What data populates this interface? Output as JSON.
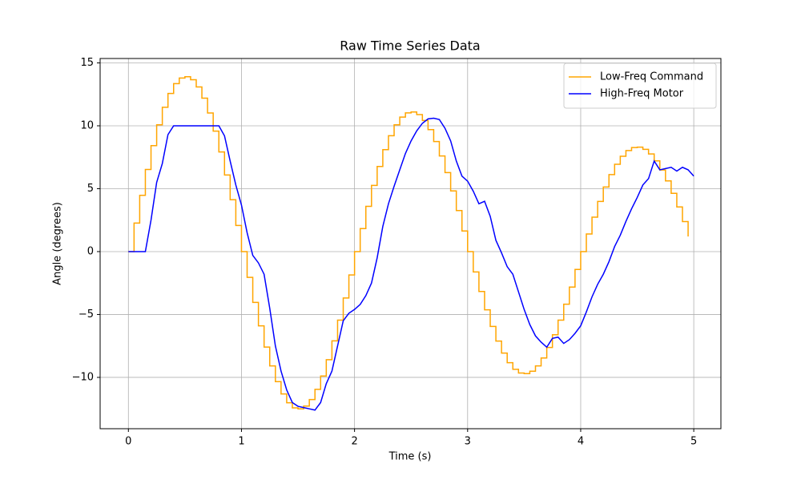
{
  "chart_data": {
    "type": "line",
    "title": "Raw Time Series Data",
    "x_label": "Time (s)",
    "y_label": "Angle (degrees)",
    "xlim": [
      -0.25,
      5.24
    ],
    "ylim": [
      -14.08,
      15.35
    ],
    "xticks": [
      0,
      1,
      2,
      3,
      4,
      5
    ],
    "yticks": [
      {
        "value": -10,
        "label": "−10"
      },
      {
        "value": -5,
        "label": "−5"
      },
      0,
      5,
      10,
      15
    ],
    "grid": true,
    "legend": "upper right",
    "series": [
      {
        "name": "Low-Freq Command",
        "color": "#ffa500",
        "drawstyle": "steps-post",
        "x": [
          0,
          0.05,
          0.1,
          0.15,
          0.2,
          0.25,
          0.3,
          0.35,
          0.4,
          0.45,
          0.5,
          0.55,
          0.6,
          0.65,
          0.7,
          0.75,
          0.8,
          0.85,
          0.9,
          0.95,
          1,
          1.05,
          1.1,
          1.15,
          1.2,
          1.25,
          1.3,
          1.35,
          1.4,
          1.45,
          1.5,
          1.55,
          1.6,
          1.65,
          1.7,
          1.75,
          1.8,
          1.85,
          1.9,
          1.95,
          2,
          2.05,
          2.1,
          2.15,
          2.2,
          2.25,
          2.3,
          2.35,
          2.4,
          2.45,
          2.5,
          2.55,
          2.6,
          2.65,
          2.7,
          2.75,
          2.8,
          2.85,
          2.9,
          2.95,
          3,
          3.05,
          3.1,
          3.15,
          3.2,
          3.25,
          3.3,
          3.35,
          3.4,
          3.45,
          3.5,
          3.55,
          3.6,
          3.65,
          3.7,
          3.75,
          3.8,
          3.85,
          3.9,
          3.95,
          4,
          4.05,
          4.1,
          4.15,
          4.2,
          4.25,
          4.3,
          4.35,
          4.4,
          4.45,
          4.5,
          4.55,
          4.6,
          4.65,
          4.7,
          4.75,
          4.8,
          4.85,
          4.9,
          4.95
        ],
        "values": [
          0,
          2.27,
          4.47,
          6.53,
          8.42,
          10.08,
          11.47,
          12.57,
          13.35,
          13.8,
          13.9,
          13.66,
          13.09,
          12.2,
          11.02,
          9.58,
          7.92,
          6.09,
          4.12,
          2.08,
          0,
          -2.05,
          -4.04,
          -5.9,
          -7.59,
          -9.09,
          -10.34,
          -11.32,
          -12.02,
          -12.42,
          -12.5,
          -12.28,
          -11.76,
          -10.95,
          -9.89,
          -8.59,
          -7.1,
          -5.45,
          -3.69,
          -1.86,
          0,
          1.83,
          3.6,
          5.26,
          6.77,
          8.1,
          9.21,
          10.08,
          10.69,
          11.03,
          11.1,
          10.89,
          10.42,
          9.7,
          8.75,
          7.6,
          6.28,
          4.82,
          3.26,
          1.64,
          0,
          -1.62,
          -3.17,
          -4.63,
          -5.95,
          -7.11,
          -8.07,
          -8.83,
          -9.36,
          -9.65,
          -9.7,
          -9.51,
          -9.09,
          -8.46,
          -7.62,
          -6.61,
          -5.45,
          -4.18,
          -2.82,
          -1.42,
          0,
          1.4,
          2.74,
          3.99,
          5.13,
          6.12,
          6.94,
          7.58,
          8.03,
          8.27,
          8.3,
          8.13,
          7.76,
          7.21,
          6.49,
          5.62,
          4.63,
          3.55,
          2.39,
          1.2
        ]
      },
      {
        "name": "High-Freq Motor",
        "color": "#0000ff",
        "drawstyle": "default",
        "x": [
          0,
          0.05,
          0.1,
          0.15,
          0.2,
          0.25,
          0.3,
          0.35,
          0.4,
          0.45,
          0.5,
          0.55,
          0.6,
          0.65,
          0.7,
          0.75,
          0.8,
          0.85,
          0.9,
          0.95,
          1,
          1.05,
          1.1,
          1.15,
          1.2,
          1.25,
          1.3,
          1.35,
          1.4,
          1.45,
          1.5,
          1.55,
          1.6,
          1.65,
          1.7,
          1.75,
          1.8,
          1.85,
          1.9,
          1.95,
          2,
          2.05,
          2.1,
          2.15,
          2.2,
          2.25,
          2.3,
          2.35,
          2.4,
          2.45,
          2.5,
          2.55,
          2.6,
          2.65,
          2.7,
          2.75,
          2.8,
          2.85,
          2.9,
          2.95,
          3,
          3.05,
          3.1,
          3.15,
          3.2,
          3.25,
          3.3,
          3.35,
          3.4,
          3.45,
          3.5,
          3.55,
          3.6,
          3.65,
          3.7,
          3.75,
          3.8,
          3.85,
          3.9,
          3.95,
          4,
          4.05,
          4.1,
          4.15,
          4.2,
          4.25,
          4.3,
          4.35,
          4.4,
          4.45,
          4.5,
          4.55,
          4.6,
          4.65,
          4.7,
          4.75,
          4.8,
          4.85,
          4.9,
          4.95,
          5
        ],
        "values": [
          0,
          0,
          0,
          0,
          2.5,
          5.5,
          7,
          9.3,
          10,
          10,
          10,
          10,
          10,
          10,
          10,
          10,
          10,
          9.2,
          7.2,
          5.3,
          3.7,
          1.5,
          -0.3,
          -0.9,
          -1.8,
          -4.5,
          -7.5,
          -9.5,
          -11,
          -12,
          -12.3,
          -12.4,
          -12.5,
          -12.6,
          -12,
          -10.5,
          -9.5,
          -7.5,
          -5.5,
          -4.9,
          -4.6,
          -4.2,
          -3.5,
          -2.5,
          -0.5,
          2,
          3.8,
          5.2,
          6.5,
          7.8,
          8.8,
          9.6,
          10.2,
          10.55,
          10.6,
          10.5,
          9.8,
          8.8,
          7.2,
          6,
          5.6,
          4.8,
          3.8,
          4,
          2.8,
          0.9,
          -0.1,
          -1.2,
          -1.8,
          -3.2,
          -4.6,
          -5.8,
          -6.7,
          -7.2,
          -7.6,
          -6.9,
          -6.8,
          -7.3,
          -7,
          -6.5,
          -5.9,
          -4.8,
          -3.6,
          -2.6,
          -1.8,
          -0.8,
          0.4,
          1.3,
          2.4,
          3.4,
          4.3,
          5.3,
          5.8,
          7.2,
          6.5,
          6.6,
          6.7,
          6.4,
          6.7,
          6.5,
          6
        ]
      }
    ]
  }
}
